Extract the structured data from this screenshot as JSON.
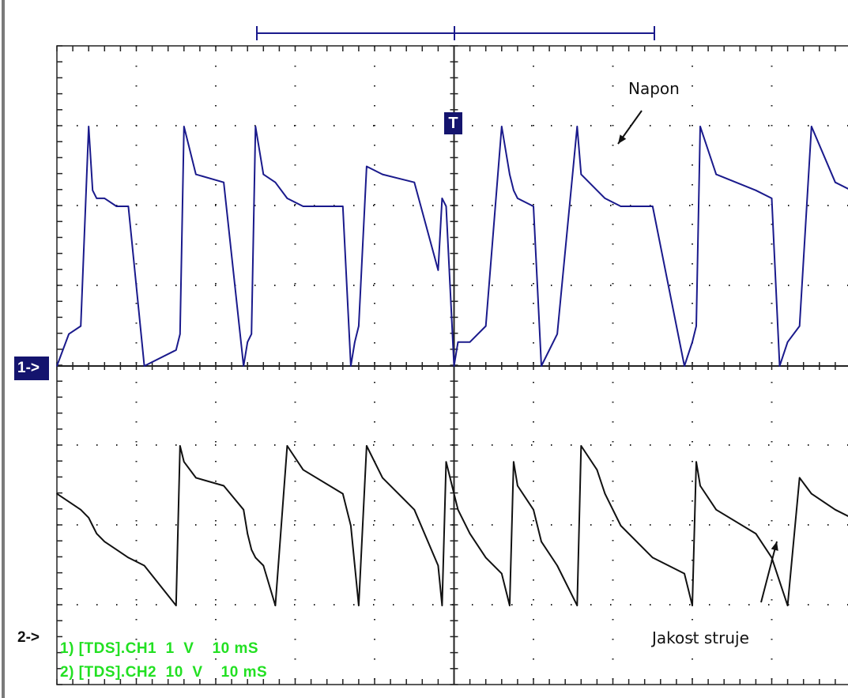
{
  "scope": {
    "ch1_marker": "1->",
    "ch2_marker": "2->",
    "trigger_marker": "T",
    "legend": [
      "1) [TDS].CH1  1  V    10 mS",
      "2) [TDS].CH2  10  V    10 mS"
    ],
    "annotations": {
      "top": "Napon",
      "bottom": "Jakost struje"
    },
    "colors": {
      "ch1": "#1a1a8c",
      "ch2": "#111111",
      "legend": "#22e022",
      "marker": "#14146e",
      "grid": "#222222"
    }
  },
  "chart_data": {
    "type": "line",
    "grid": true,
    "divisions": {
      "x": 10,
      "y": 8
    },
    "x": [
      0,
      0.15,
      0.3,
      0.4,
      0.45,
      0.5,
      0.6,
      0.75,
      0.9,
      1.1,
      1.5,
      1.55,
      1.6,
      1.75,
      2.1,
      2.35,
      2.4,
      2.45,
      2.5,
      2.6,
      2.75,
      2.9,
      3.1,
      3.6,
      3.7,
      3.75,
      3.8,
      3.9,
      4.1,
      4.5,
      4.8,
      4.85,
      4.9,
      5.0,
      5.05,
      5.2,
      5.4,
      5.6,
      5.7,
      5.75,
      5.8,
      6.0,
      6.1,
      6.3,
      6.55,
      6.6,
      6.8,
      6.9,
      7.1,
      7.5,
      7.9,
      8.0,
      8.05,
      8.1,
      8.3,
      8.8,
      9.0,
      9.1,
      9.2,
      9.35,
      9.5,
      9.8,
      10.0
    ],
    "series": [
      {
        "values": [
          0.0,
          0.4,
          0.5,
          3.0,
          2.2,
          2.1,
          2.1,
          2.0,
          2.0,
          0.0,
          0.2,
          0.4,
          3.0,
          2.4,
          2.3,
          0.0,
          0.3,
          0.4,
          3.0,
          2.4,
          2.3,
          2.1,
          2.0,
          2.0,
          0.0,
          0.3,
          0.5,
          2.5,
          2.4,
          2.3,
          1.2,
          2.1,
          2.0,
          0.0,
          0.3,
          0.3,
          0.5,
          3.0,
          2.4,
          2.2,
          2.1,
          2.0,
          0.0,
          0.4,
          3.0,
          2.4,
          2.2,
          2.1,
          2.0,
          2.0,
          0.0,
          0.3,
          0.5,
          3.0,
          2.4,
          2.2,
          2.1,
          0.0,
          0.3,
          0.5,
          3.0,
          2.3,
          2.2
        ]
      },
      {
        "values": [
          -1.6,
          -1.7,
          -1.8,
          -1.9,
          -2.0,
          -2.1,
          -2.2,
          -2.3,
          -2.4,
          -2.5,
          -3.0,
          -1.0,
          -1.2,
          -1.4,
          -1.5,
          -1.8,
          -2.1,
          -2.3,
          -2.4,
          -2.5,
          -3.0,
          -1.0,
          -1.3,
          -1.6,
          -2.0,
          -2.5,
          -3.0,
          -1.0,
          -1.4,
          -1.8,
          -2.5,
          -3.0,
          -1.2,
          -1.6,
          -1.8,
          -2.1,
          -2.4,
          -2.6,
          -3.0,
          -1.2,
          -1.5,
          -1.8,
          -2.2,
          -2.5,
          -3.0,
          -1.0,
          -1.3,
          -1.6,
          -2.0,
          -2.4,
          -2.6,
          -3.0,
          -1.2,
          -1.5,
          -1.8,
          -2.1,
          -2.4,
          -2.7,
          -3.0,
          -1.4,
          -1.6,
          -1.8,
          -1.9
        ]
      }
    ]
  }
}
